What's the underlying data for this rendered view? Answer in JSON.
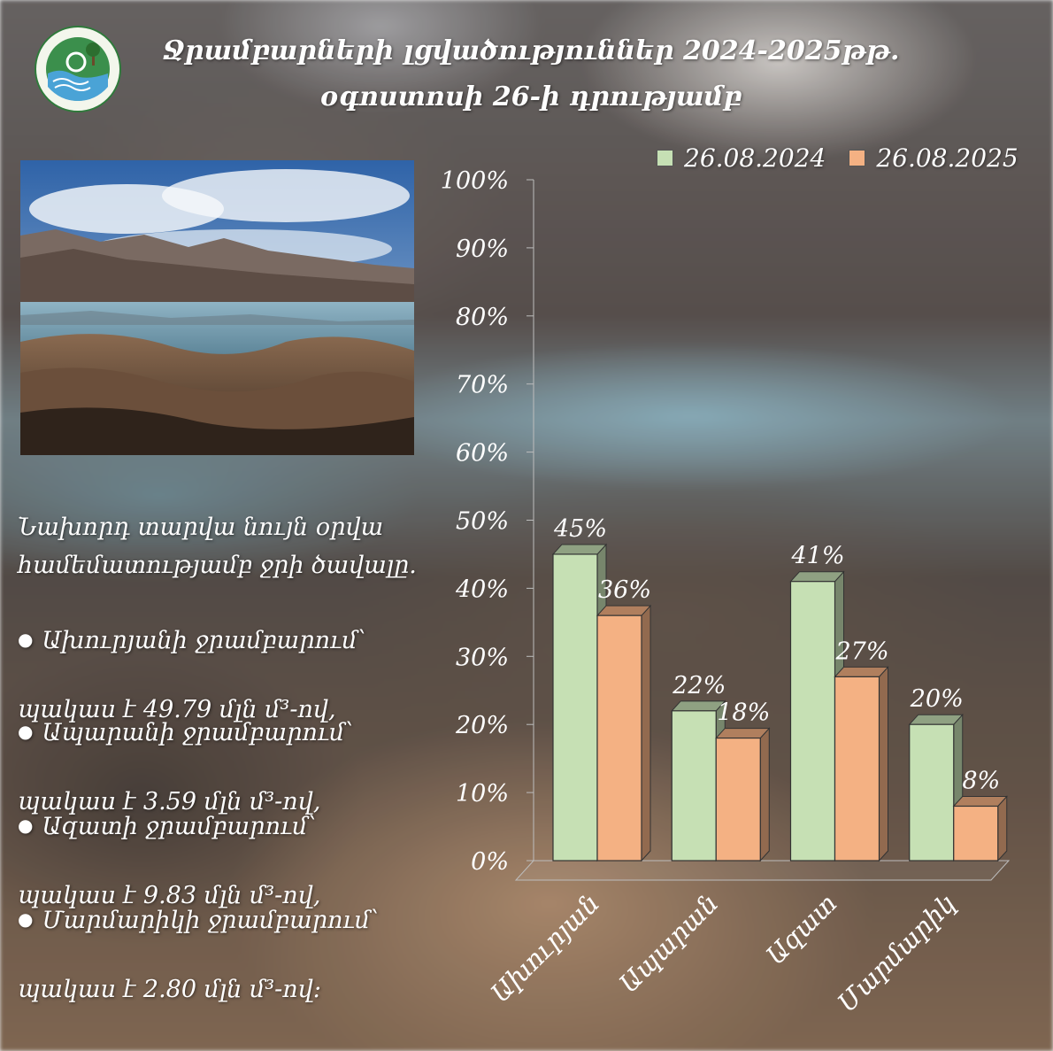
{
  "title_line1": "Ջրամբարների լցվածություններ 2024-2025թթ.",
  "title_line2": "օգոստոսի 26-ի դրությամբ",
  "description": {
    "heading_line1": "Նախորդ տարվա նույն օրվա",
    "heading_line2": "համեմատությամբ ջրի ծավալը.",
    "items": [
      {
        "name_line": "Ախուրյանի ջրամբարում՝",
        "value_line": "պակաս է 49.79 մլն մ³-ով,"
      },
      {
        "name_line": "Ապարանի ջրամբարում՝",
        "value_line": "պակաս է 3.59 մլն մ³-ով,"
      },
      {
        "name_line": "Ազատի ջրամբարում՝",
        "value_line": "պակաս է  9.83 մլն մ³-ով,"
      },
      {
        "name_line": "Մարմարիկի ջրամբարում՝",
        "value_line": "պակաս է 2.80 մլն մ³-ով:"
      }
    ]
  },
  "chart_data": {
    "type": "bar",
    "categories": [
      "Ախուրյան",
      "Ապարան",
      "Ազատ",
      "Մարմարիկ"
    ],
    "series": [
      {
        "name": "26.08.2024",
        "values": [
          45,
          22,
          41,
          20
        ],
        "labels": [
          "45%",
          "22%",
          "41%",
          "20%"
        ],
        "color": "#c6e0b4"
      },
      {
        "name": "26.08.2025",
        "values": [
          36,
          18,
          27,
          8
        ],
        "labels": [
          "36%",
          "18%",
          "27%",
          "8%"
        ],
        "color": "#f4b183"
      }
    ],
    "ylim": [
      0,
      100
    ],
    "yticks": [
      "0%",
      "10%",
      "20%",
      "30%",
      "40%",
      "50%",
      "60%",
      "70%",
      "80%",
      "90%",
      "100%"
    ],
    "legend_position": "top",
    "style": "3d-clustered-column"
  }
}
